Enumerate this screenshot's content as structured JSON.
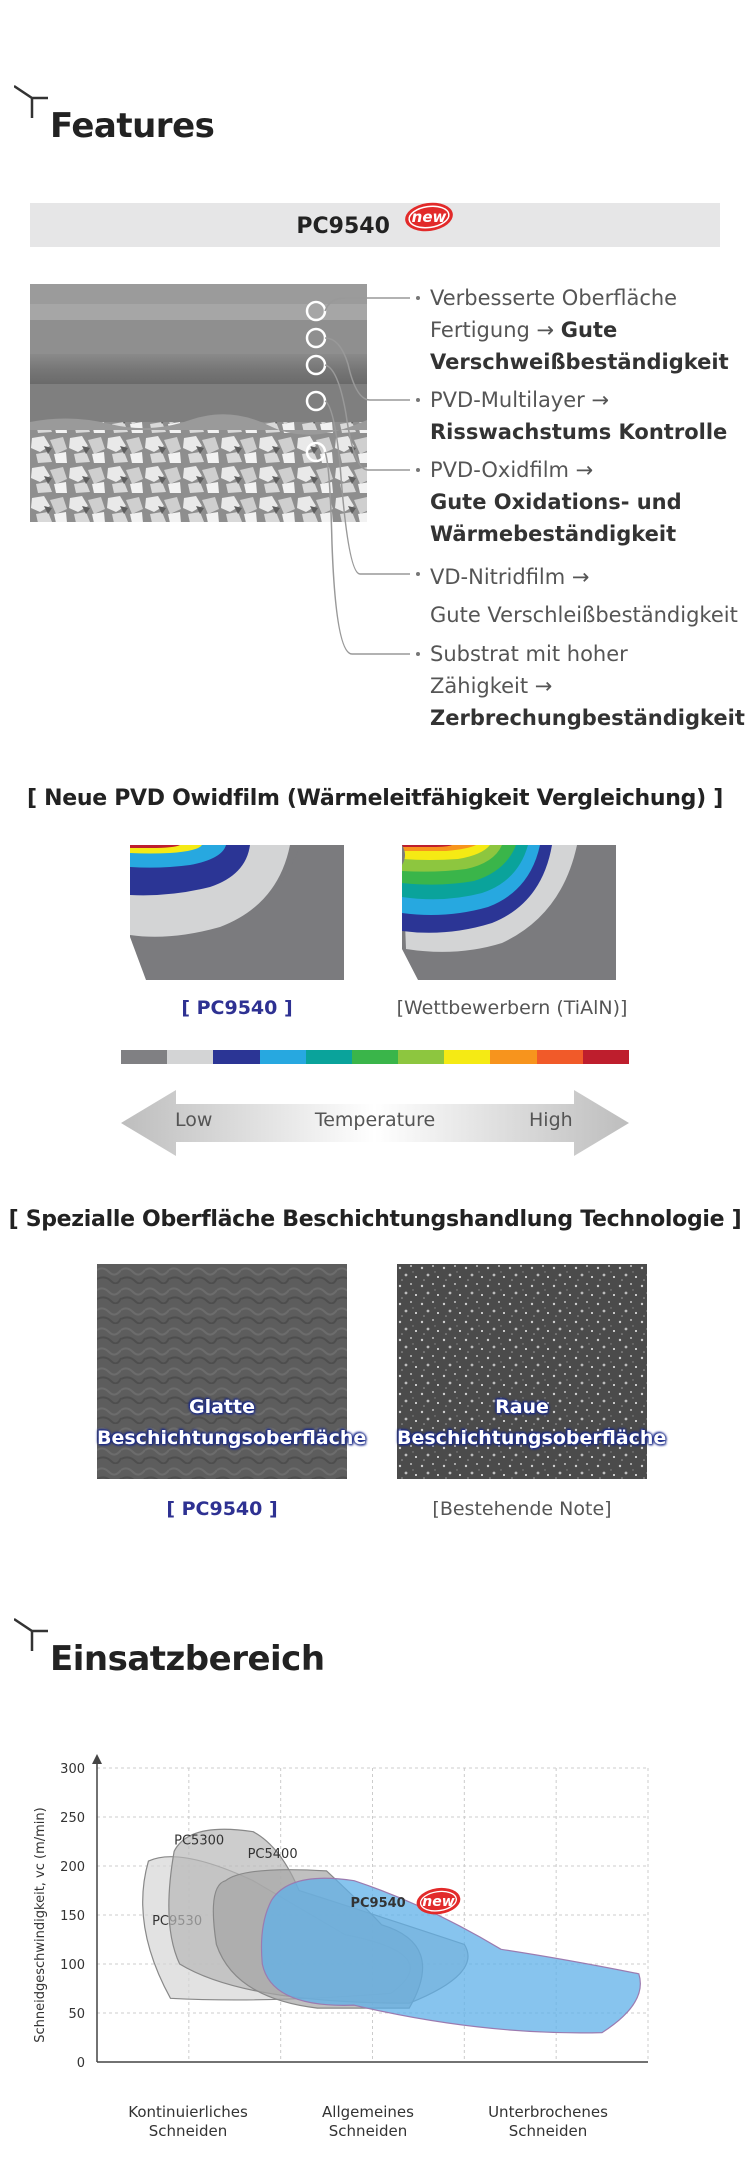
{
  "features": {
    "title": "Features",
    "product_bar": {
      "name": "PC9540",
      "badge": "new"
    },
    "items": [
      {
        "text": "Verbesserte Oberfläche Fertigung → ",
        "bold": "Gute Verschweißbeständigkeit"
      },
      {
        "text": "PVD-Multilayer → ",
        "bold": "Risswachstums Kontrolle"
      },
      {
        "text": "PVD-Oxidfilm → ",
        "bold": "Gute Oxidations- und Wärmebeständigkeit"
      },
      {
        "text": "VD-Nitridfilm → ",
        "bold": "",
        "line2": "Gute Verschleißbeständigkeit"
      },
      {
        "text": "Substrat mit hoher Zähigkeit → ",
        "bold": "Zerbrechungbeständigkeit"
      }
    ]
  },
  "thermal": {
    "heading": "[ Neue PVD Owidfilm (Wärmeleitfähigkeit Vergleichung) ]",
    "left_caption": "[ PC9540 ]",
    "right_caption": "[Wettbewerbern (TiAlN)]",
    "scale_colors": [
      "#808083",
      "#d3d4d5",
      "#2b3595",
      "#27a8e0",
      "#0aa39b",
      "#3ab54a",
      "#8dc63f",
      "#f5ea14",
      "#f7941d",
      "#f15a29",
      "#be1e2d"
    ],
    "arrow": {
      "low": "Low",
      "mid": "Temperature",
      "high": "High"
    }
  },
  "surface": {
    "heading": "[ Spezialle Oberfläche Beschichtungshandlung Technologie ]",
    "left": {
      "label_line1": "Glatte",
      "label_line2": "Beschichtungsoberfläche",
      "caption": "[ PC9540 ]"
    },
    "right": {
      "label_line1": "Raue",
      "label_line2": "Beschichtungsoberfläche",
      "caption": "[Bestehende Note]"
    }
  },
  "application": {
    "title": "Einsatzbereich",
    "chart_data": {
      "type": "area",
      "ylabel": "Schneidgeschwindigkeit, vc (m/min)",
      "ylim": [
        0,
        300
      ],
      "yticks": [
        "0",
        "50",
        "100",
        "150",
        "200",
        "250",
        "300"
      ],
      "categories": [
        "Kontinuierliches Schneiden",
        "Allgemeines Schneiden",
        "Unterbrochenes Schneiden"
      ],
      "series": [
        {
          "name": "PC5300",
          "color": "#b8b8b8",
          "vc_range": [
            60,
            245
          ]
        },
        {
          "name": "PC5400",
          "color": "#a5a5a5",
          "vc_range": [
            55,
            200
          ]
        },
        {
          "name": "PC9530",
          "color": "#d5d5d5",
          "vc_range": [
            65,
            225
          ]
        },
        {
          "name": "PC9540",
          "color": "#5fb0e8",
          "vc_range": [
            30,
            195
          ],
          "badge": "new"
        }
      ],
      "grid": true
    },
    "cat_labels": [
      {
        "line1": "Kontinuierliches",
        "line2": "Schneiden"
      },
      {
        "line1": "Allgemeines",
        "line2": "Schneiden"
      },
      {
        "line1": "Unterbrochenes",
        "line2": "Schneiden"
      }
    ]
  }
}
